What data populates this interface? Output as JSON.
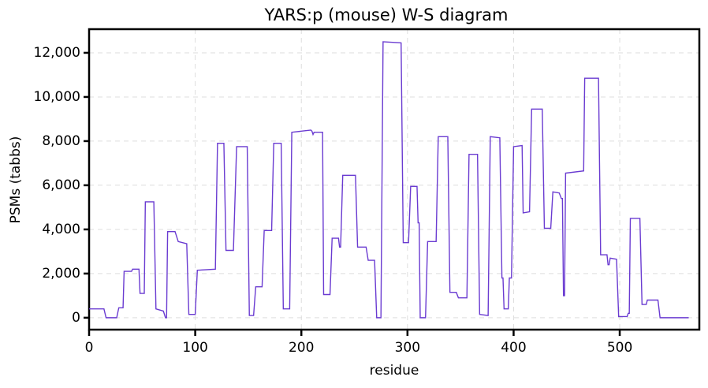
{
  "chart_data": {
    "type": "line",
    "title": "YARS:p (mouse) W-S diagram",
    "x_label": "residue",
    "y_label": "PSMs (tabbs)",
    "x": [
      0,
      14,
      16,
      26,
      28,
      32,
      33,
      40,
      41,
      47,
      48,
      52,
      53,
      61,
      63,
      70,
      72,
      73,
      74,
      81,
      84,
      92,
      94,
      100,
      102,
      119,
      121,
      127,
      129,
      136,
      139,
      149,
      151,
      155,
      157,
      163,
      165,
      172,
      174,
      181,
      183,
      189,
      191,
      209,
      210,
      211,
      212,
      220,
      221,
      227,
      229,
      235,
      236,
      237,
      239,
      251,
      253,
      261,
      263,
      269,
      271,
      275,
      277,
      294,
      296,
      301,
      303,
      309,
      310,
      311,
      312,
      317,
      319,
      327,
      329,
      338,
      340,
      346,
      348,
      356,
      358,
      366,
      368,
      376,
      378,
      387,
      389,
      390,
      391,
      395,
      396,
      398,
      400,
      408,
      409,
      415,
      417,
      427,
      429,
      435,
      437,
      443,
      445,
      446,
      447,
      448,
      449,
      466,
      467,
      480,
      482,
      488,
      489,
      490,
      491,
      497,
      499,
      507,
      508,
      509,
      510,
      519,
      521,
      525,
      526,
      536,
      538,
      565
    ],
    "series": [
      {
        "name": "PSMs",
        "color": "#6a3bd1",
        "values": [
          400,
          400,
          0,
          0,
          450,
          450,
          2100,
          2100,
          2200,
          2200,
          1100,
          1100,
          5250,
          5250,
          400,
          300,
          0,
          0,
          3900,
          3900,
          3450,
          3350,
          150,
          150,
          2150,
          2200,
          7900,
          7900,
          3050,
          3050,
          7750,
          7750,
          100,
          100,
          1400,
          1400,
          3950,
          3950,
          7900,
          7900,
          400,
          400,
          8400,
          8500,
          8450,
          8300,
          8400,
          8400,
          1050,
          1050,
          3600,
          3600,
          3200,
          3200,
          6450,
          6450,
          3200,
          3200,
          2600,
          2600,
          0,
          0,
          12500,
          12450,
          3400,
          3400,
          5950,
          5950,
          4300,
          4300,
          0,
          0,
          3450,
          3450,
          8200,
          8200,
          1150,
          1150,
          900,
          900,
          7400,
          7400,
          150,
          100,
          8200,
          8150,
          1800,
          1800,
          400,
          400,
          1800,
          1800,
          7750,
          7800,
          4750,
          4800,
          9450,
          9450,
          4050,
          4050,
          5700,
          5650,
          5400,
          5400,
          1000,
          1000,
          6550,
          6650,
          10850,
          10850,
          2850,
          2850,
          2400,
          2400,
          2700,
          2650,
          50,
          50,
          200,
          200,
          4500,
          4500,
          600,
          600,
          800,
          800,
          0,
          0
        ]
      }
    ],
    "xlim": [
      0,
      575
    ],
    "ylim": [
      -540,
      13070
    ],
    "xticks": [
      0,
      100,
      200,
      300,
      400,
      500
    ],
    "yticks": [
      0,
      {
        "value": 2000,
        "label": "2,000"
      },
      {
        "value": 4000,
        "label": "4,000"
      },
      {
        "value": 6000,
        "label": "6,000"
      },
      {
        "value": 8000,
        "label": "8,000"
      },
      {
        "value": 10000,
        "label": "10,000"
      },
      {
        "value": 12000,
        "label": "12,000"
      }
    ],
    "grid": true
  }
}
